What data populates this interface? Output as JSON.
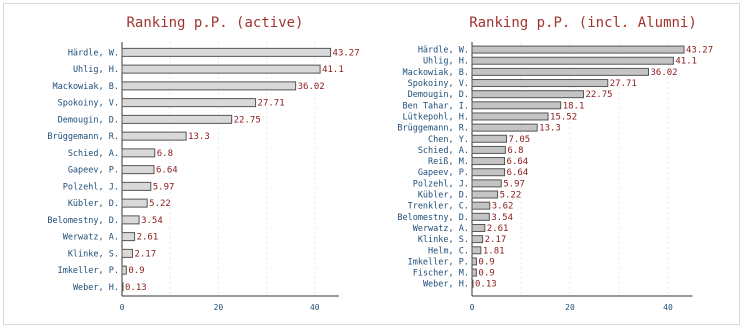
{
  "chart_data": [
    {
      "type": "bar",
      "orientation": "horizontal",
      "title": "Ranking p.P. (active)",
      "categories": [
        "Härdle, W.",
        "Uhlig, H.",
        "Mackowiak, B.",
        "Spokoiny, V.",
        "Demougin, D.",
        "Brüggemann, R.",
        "Schied, A.",
        "Gapeev, P.",
        "Polzehl, J.",
        "Kübler, D.",
        "Belomestny, D.",
        "Werwatz, A.",
        "Klinke, S.",
        "Imkeller, P.",
        "Weber, H."
      ],
      "values": [
        43.27,
        41.1,
        36.02,
        27.71,
        22.75,
        13.3,
        6.8,
        6.64,
        5.97,
        5.22,
        3.54,
        2.61,
        2.17,
        0.9,
        0.13
      ],
      "value_labels": [
        "43.27",
        "41.1",
        "36.02",
        "27.71",
        "22.75",
        "13.3",
        "6.8",
        "6.64",
        "5.97",
        "5.22",
        "3.54",
        "2.61",
        "2.17",
        "0.9",
        "0.13"
      ],
      "xlim": [
        0,
        45
      ],
      "xticks": [
        "0",
        "20",
        "40"
      ],
      "grid": true,
      "bar_color": "#d9d9d9"
    },
    {
      "type": "bar",
      "orientation": "horizontal",
      "title": "Ranking p.P. (incl. Alumni)",
      "categories": [
        "Härdle, W.",
        "Uhlig, H.",
        "Mackowiak, B.",
        "Spokoiny, V.",
        "Demougin, D.",
        "Ben Tahar, I.",
        "Lütkepohl, H.",
        "Brüggemann, R.",
        "Chen, Y.",
        "Schied, A.",
        "Reiß, M.",
        "Gapeev, P.",
        "Polzehl, J.",
        "Kübler, D.",
        "Trenkler, C.",
        "Belomestny, D.",
        "Werwatz, A.",
        "Klinke, S.",
        "Helm, C.",
        "Imkeller, P.",
        "Fischer, M.",
        "Weber, H."
      ],
      "values": [
        43.27,
        41.1,
        36.02,
        27.71,
        22.75,
        18.1,
        15.52,
        13.3,
        7.05,
        6.8,
        6.64,
        6.64,
        5.97,
        5.22,
        3.62,
        3.54,
        2.61,
        2.17,
        1.81,
        0.9,
        0.9,
        0.13
      ],
      "value_labels": [
        "43.27",
        "41.1",
        "36.02",
        "27.71",
        "22.75",
        "18.1",
        "15.52",
        "13.3",
        "7.05",
        "6.8",
        "6.64",
        "6.64",
        "5.97",
        "5.22",
        "3.62",
        "3.54",
        "2.61",
        "2.17",
        "1.81",
        "0.9",
        "0.9",
        "0.13"
      ],
      "xlim": [
        0,
        45
      ],
      "xticks": [
        "0",
        "20",
        "40"
      ],
      "grid": true,
      "bar_color": "#c4c4c4"
    }
  ]
}
